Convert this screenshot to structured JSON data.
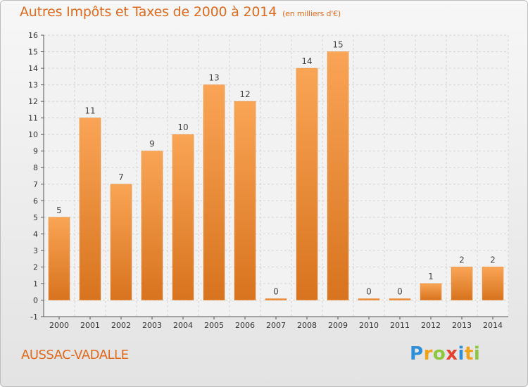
{
  "chart_data": {
    "type": "bar",
    "title": "Autres Impôts et Taxes de 2000 à 2014",
    "subtitle": "(en milliers d'€)",
    "categories": [
      "2000",
      "2001",
      "2002",
      "2003",
      "2004",
      "2005",
      "2006",
      "2007",
      "2008",
      "2009",
      "2010",
      "2011",
      "2012",
      "2013",
      "2014"
    ],
    "values": [
      5,
      11,
      7,
      9,
      10,
      13,
      12,
      0,
      14,
      15,
      0,
      0,
      1,
      2,
      2
    ],
    "ylim": [
      -1,
      16
    ],
    "yticks": [
      "-1",
      "0",
      "1",
      "2",
      "3",
      "4",
      "5",
      "6",
      "7",
      "8",
      "9",
      "10",
      "11",
      "12",
      "13",
      "14",
      "15",
      "16"
    ],
    "grid": true,
    "bar_color": "#f08a2c"
  },
  "footer": {
    "commune": "AUSSAC-VADALLE",
    "logo_letters": [
      "P",
      "r",
      "o",
      "x",
      "i",
      "t",
      "i"
    ]
  }
}
